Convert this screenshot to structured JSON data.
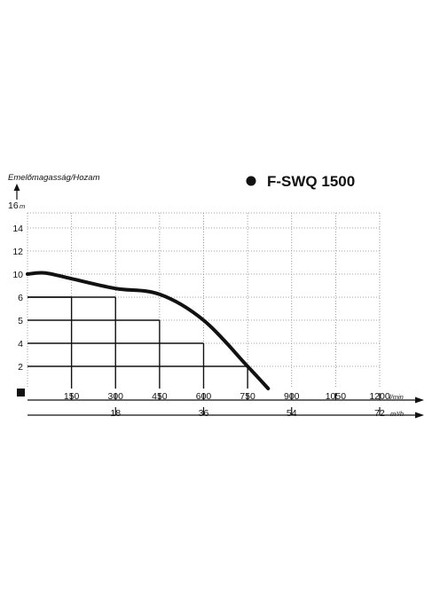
{
  "chart_data": {
    "type": "line",
    "title": "F-SWQ 1500",
    "ylabel": "Emelőmagasság/Hozam",
    "y_unit_label": "m",
    "x_unit_label": "l/min",
    "x2_unit_label": "m³/h",
    "ylim": [
      0,
      16
    ],
    "xlim": [
      0,
      1200
    ],
    "y_ticks": [
      {
        "value": 2,
        "label": "2"
      },
      {
        "value": 4,
        "label": "4"
      },
      {
        "value": 5,
        "label": "5"
      },
      {
        "value": 6,
        "label": "6"
      },
      {
        "value": 10,
        "label": "10"
      },
      {
        "value": 12,
        "label": "12"
      },
      {
        "value": 14,
        "label": "14"
      },
      {
        "value": 16,
        "label": "16"
      }
    ],
    "x_ticks": [
      150,
      300,
      450,
      600,
      750,
      900,
      1050,
      1200
    ],
    "x_tick_labels": [
      "150",
      "300",
      "450",
      "600",
      "750",
      "900",
      "1050",
      "1200"
    ],
    "x2_ticks": [
      {
        "value": 300,
        "label": "18"
      },
      {
        "value": 600,
        "label": "36"
      },
      {
        "value": 900,
        "label": "54"
      },
      {
        "value": 1200,
        "label": "72"
      }
    ],
    "grid": true,
    "series": [
      {
        "x": [
          0,
          60,
          150,
          300,
          450,
          600,
          750,
          820
        ],
        "y": [
          10,
          10.1,
          9.2,
          7.5,
          6.5,
          5,
          2,
          0
        ]
      }
    ],
    "reference_points": [
      {
        "x": 150,
        "y": 6
      },
      {
        "x": 300,
        "y": 6
      },
      {
        "x": 450,
        "y": 5
      },
      {
        "x": 600,
        "y": 4
      },
      {
        "x": 750,
        "y": 2
      }
    ],
    "colors": {
      "curve": "#111111",
      "grid": "#888888",
      "axis": "#111111"
    }
  }
}
